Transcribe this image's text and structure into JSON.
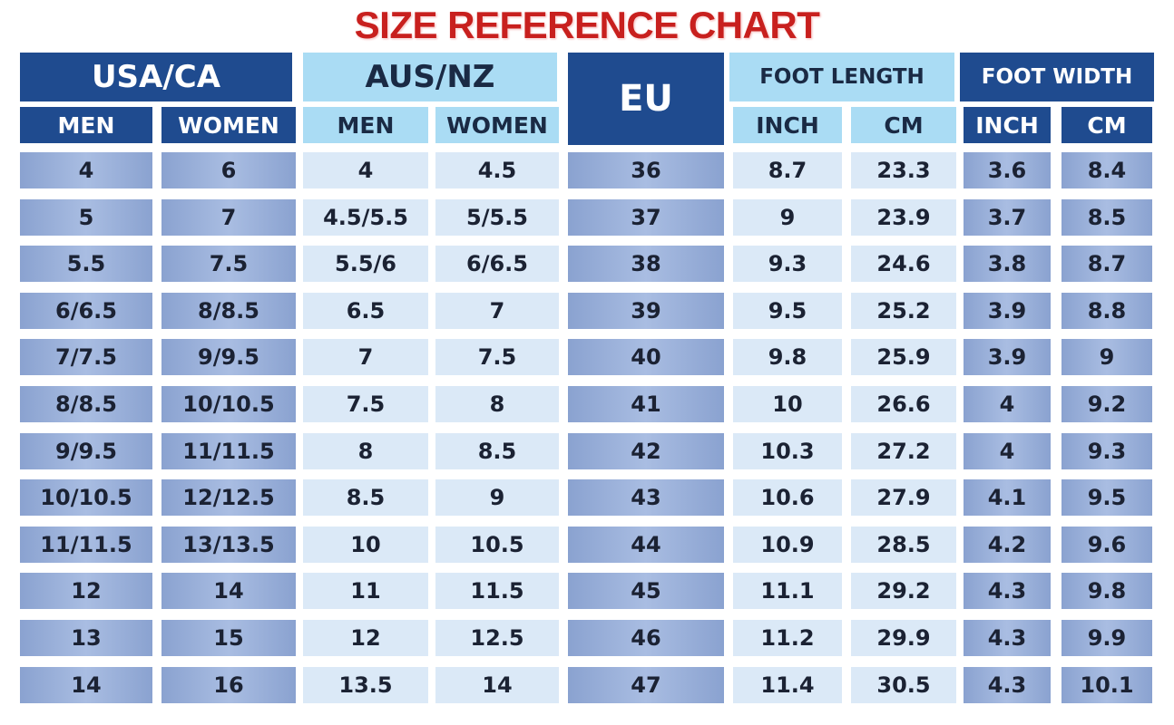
{
  "title": "SIZE REFERENCE CHART",
  "groups": [
    "USA/CA",
    "AUS/NZ",
    "EU",
    "FOOT LENGTH",
    "FOOT WIDTH"
  ],
  "subheaders": [
    "MEN",
    "WOMEN",
    "MEN",
    "WOMEN",
    "INCH",
    "CM",
    "INCH",
    "CM"
  ],
  "rows": [
    [
      "4",
      "6",
      "4",
      "4.5",
      "36",
      "8.7",
      "23.3",
      "3.6",
      "8.4"
    ],
    [
      "5",
      "7",
      "4.5/5.5",
      "5/5.5",
      "37",
      "9",
      "23.9",
      "3.7",
      "8.5"
    ],
    [
      "5.5",
      "7.5",
      "5.5/6",
      "6/6.5",
      "38",
      "9.3",
      "24.6",
      "3.8",
      "8.7"
    ],
    [
      "6/6.5",
      "8/8.5",
      "6.5",
      "7",
      "39",
      "9.5",
      "25.2",
      "3.9",
      "8.8"
    ],
    [
      "7/7.5",
      "9/9.5",
      "7",
      "7.5",
      "40",
      "9.8",
      "25.9",
      "3.9",
      "9"
    ],
    [
      "8/8.5",
      "10/10.5",
      "7.5",
      "8",
      "41",
      "10",
      "26.6",
      "4",
      "9.2"
    ],
    [
      "9/9.5",
      "11/11.5",
      "8",
      "8.5",
      "42",
      "10.3",
      "27.2",
      "4",
      "9.3"
    ],
    [
      "10/10.5",
      "12/12.5",
      "8.5",
      "9",
      "43",
      "10.6",
      "27.9",
      "4.1",
      "9.5"
    ],
    [
      "11/11.5",
      "13/13.5",
      "10",
      "10.5",
      "44",
      "10.9",
      "28.5",
      "4.2",
      "9.6"
    ],
    [
      "12",
      "14",
      "11",
      "11.5",
      "45",
      "11.1",
      "29.2",
      "4.3",
      "9.8"
    ],
    [
      "13",
      "15",
      "12",
      "12.5",
      "46",
      "11.2",
      "29.9",
      "4.3",
      "9.9"
    ],
    [
      "14",
      "16",
      "13.5",
      "14",
      "47",
      "11.4",
      "30.5",
      "4.3",
      "10.1"
    ]
  ]
}
